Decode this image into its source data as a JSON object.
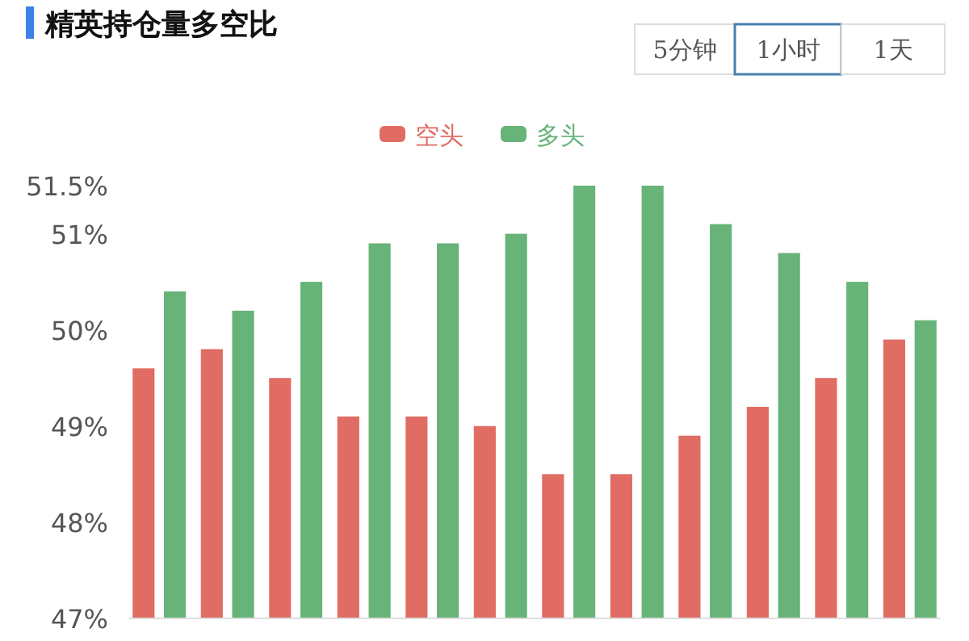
{
  "chart_data": {
    "type": "bar",
    "title": "精英持仓量多空比",
    "annotations": [
      "5分钟",
      "1小时",
      "1天"
    ],
    "categories": [
      null,
      null,
      null,
      null,
      null,
      null,
      null,
      null,
      null,
      null,
      null,
      null
    ],
    "series": [
      {
        "name": "空头",
        "color": "#e06c63",
        "values": [
          49.6,
          49.8,
          49.5,
          49.1,
          49.1,
          49.0,
          48.5,
          48.5,
          48.9,
          49.2,
          49.5,
          49.9
        ]
      },
      {
        "name": "多头",
        "color": "#67b378",
        "values": [
          50.4,
          50.2,
          50.5,
          50.9,
          50.9,
          51.0,
          51.5,
          51.5,
          51.1,
          50.8,
          50.5,
          50.1
        ]
      }
    ],
    "ylim": [
      47,
      51.5
    ],
    "yticks": [
      {
        "value": 47,
        "label": "47%"
      },
      {
        "value": 48,
        "label": "48%"
      },
      {
        "value": 49,
        "label": "49%"
      },
      {
        "value": 50,
        "label": "50%"
      },
      {
        "value": 51,
        "label": "51%"
      },
      {
        "value": 51.5,
        "label": "51.5%"
      }
    ],
    "grid": false,
    "legend": "top"
  }
}
